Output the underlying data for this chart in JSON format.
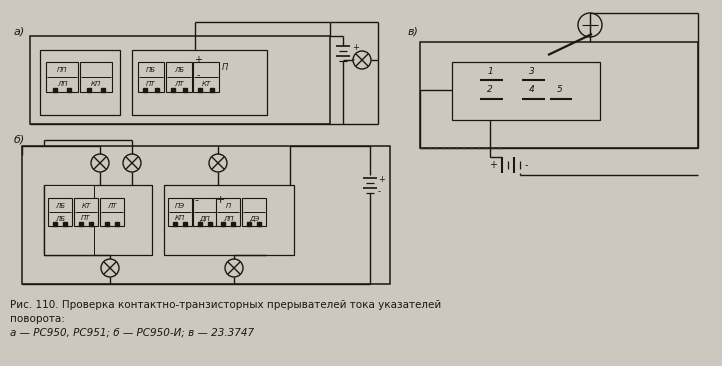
{
  "bg_color": "#cdc8bf",
  "tc": "#1a1612",
  "bc": "#1a1612",
  "title_line1": "Рис. 110. Проверка контактно-транзисторных прерывателей тока указателей",
  "title_line2": "поворота:",
  "title_line3": "а — РС950, РС951; б — РС950-И; в — 23.3747",
  "label_a": "а)",
  "label_b": "б)",
  "label_v": "в)"
}
